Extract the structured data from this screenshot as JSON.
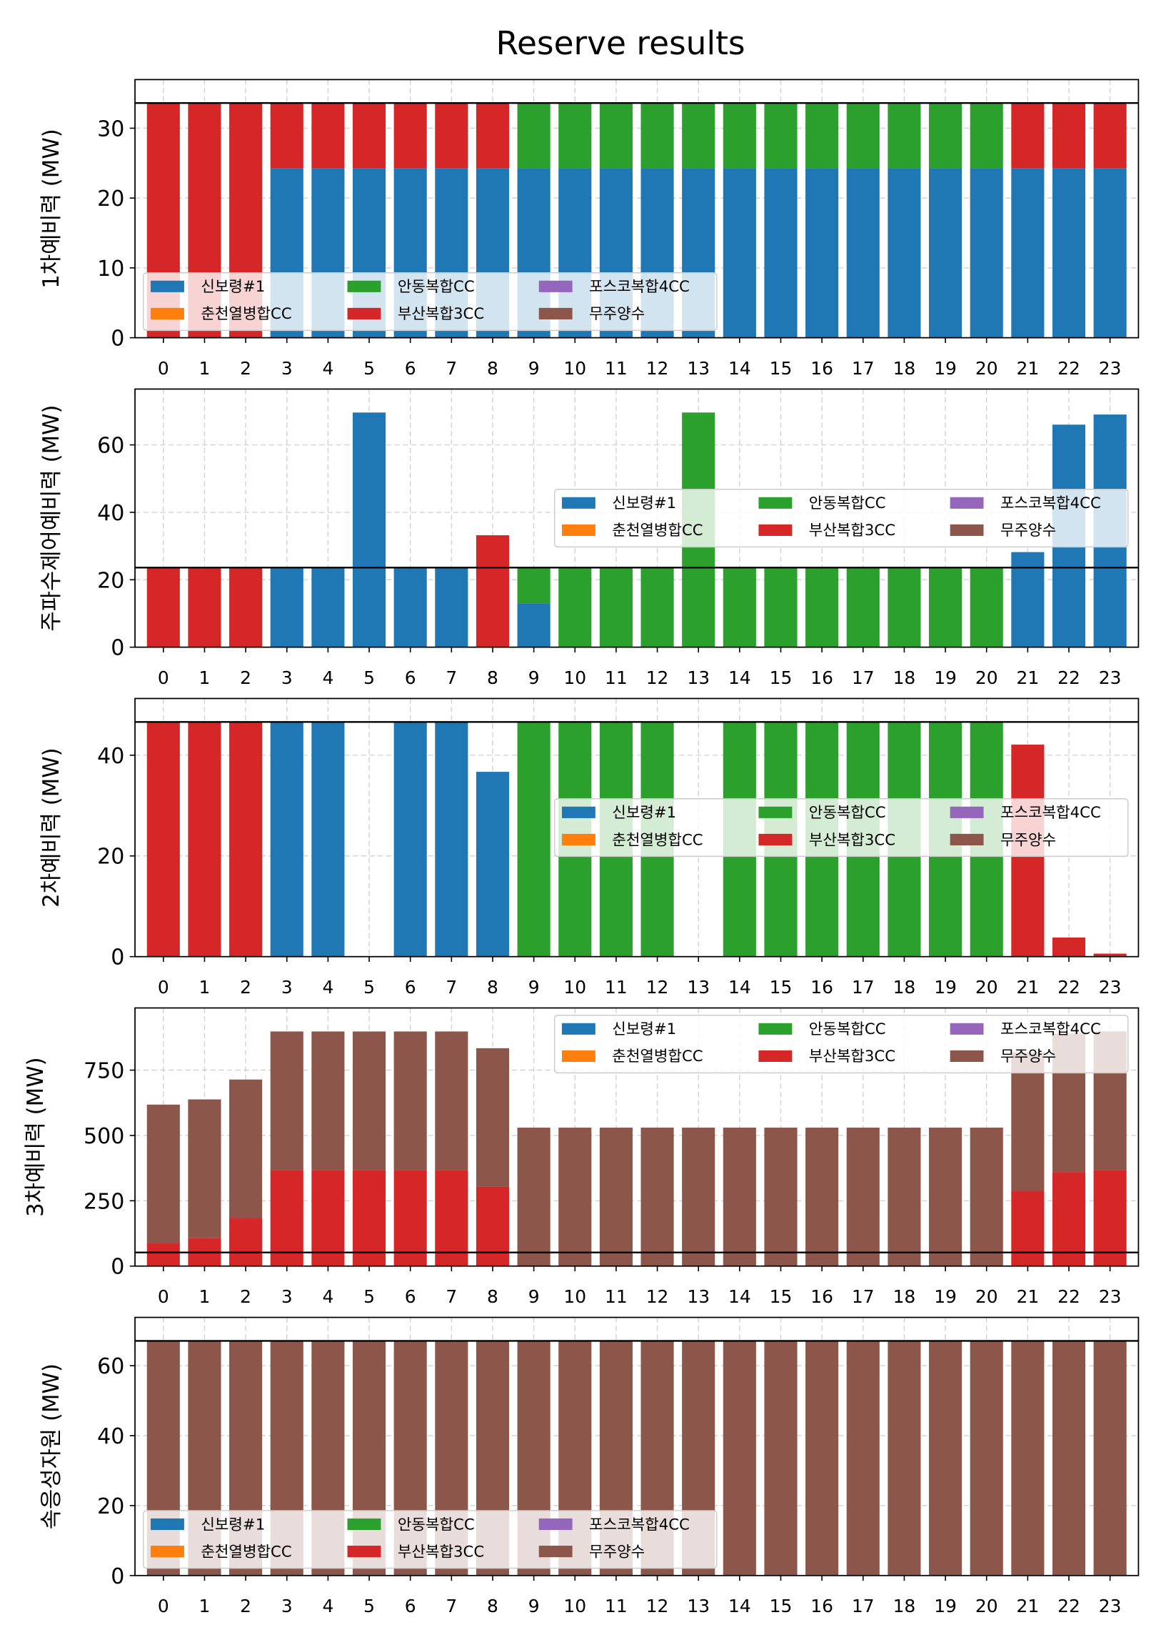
{
  "title": "Reserve results",
  "chart_data": [
    {
      "type": "bar",
      "stacked": true,
      "ylabel": "1차예비력 (MW)",
      "categories": [
        "0",
        "1",
        "2",
        "3",
        "4",
        "5",
        "6",
        "7",
        "8",
        "9",
        "10",
        "11",
        "12",
        "13",
        "14",
        "15",
        "16",
        "17",
        "18",
        "19",
        "20",
        "21",
        "22",
        "23"
      ],
      "ylim": [
        0,
        36.96
      ],
      "yticks": [
        0,
        10,
        20,
        30
      ],
      "reference_line": 33.6,
      "grid": true,
      "legend": "lower-left",
      "series": [
        {
          "name": "신보령#1",
          "color": "#1f77b4",
          "values": [
            0,
            0,
            0,
            24.3,
            24.3,
            24.3,
            24.3,
            24.3,
            24.3,
            24.3,
            24.3,
            24.3,
            24.3,
            24.3,
            24.3,
            24.3,
            24.3,
            24.3,
            24.3,
            24.3,
            24.3,
            24.3,
            24.3,
            24.3
          ]
        },
        {
          "name": "춘천열병합CC",
          "color": "#ff7f0e",
          "values": [
            0,
            0,
            0,
            0,
            0,
            0,
            0,
            0,
            0,
            0,
            0,
            0,
            0,
            0,
            0,
            0,
            0,
            0,
            0,
            0,
            0,
            0,
            0,
            0
          ]
        },
        {
          "name": "안동복합CC",
          "color": "#2ca02c",
          "values": [
            0,
            0,
            0,
            0,
            0,
            0,
            0,
            0,
            0,
            9.3,
            9.3,
            9.3,
            9.3,
            9.3,
            9.3,
            9.3,
            9.3,
            9.3,
            9.3,
            9.3,
            9.3,
            0,
            0,
            0
          ]
        },
        {
          "name": "부산복합3CC",
          "color": "#d62728",
          "values": [
            33.6,
            33.6,
            33.6,
            9.3,
            9.3,
            9.3,
            9.3,
            9.3,
            9.3,
            0,
            0,
            0,
            0,
            0,
            0,
            0,
            0,
            0,
            0,
            0,
            0,
            9.3,
            9.3,
            9.3
          ]
        },
        {
          "name": "포스코복합4CC",
          "color": "#9467bd",
          "values": [
            0,
            0,
            0,
            0,
            0,
            0,
            0,
            0,
            0,
            0,
            0,
            0,
            0,
            0,
            0,
            0,
            0,
            0,
            0,
            0,
            0,
            0,
            0,
            0
          ]
        },
        {
          "name": "무주양수",
          "color": "#8c564b",
          "values": [
            0,
            0,
            0,
            0,
            0,
            0,
            0,
            0,
            0,
            0,
            0,
            0,
            0,
            0,
            0,
            0,
            0,
            0,
            0,
            0,
            0,
            0,
            0,
            0
          ]
        }
      ]
    },
    {
      "type": "bar",
      "stacked": true,
      "ylabel": "주파수제어예비력 (MW)",
      "categories": [
        "0",
        "1",
        "2",
        "3",
        "4",
        "5",
        "6",
        "7",
        "8",
        "9",
        "10",
        "11",
        "12",
        "13",
        "14",
        "15",
        "16",
        "17",
        "18",
        "19",
        "20",
        "21",
        "22",
        "23"
      ],
      "ylim": [
        0,
        76.56
      ],
      "yticks": [
        0,
        20,
        40,
        60
      ],
      "reference_line": 23.6,
      "grid": true,
      "legend": "center-right",
      "series": [
        {
          "name": "신보령#1",
          "color": "#1f77b4",
          "values": [
            0,
            0,
            0,
            23.6,
            23.6,
            69.6,
            23.6,
            23.6,
            0,
            13.0,
            0,
            0,
            0,
            0,
            0,
            0,
            0,
            0,
            0,
            0,
            0,
            28.2,
            66.0,
            69.0
          ]
        },
        {
          "name": "춘천열병합CC",
          "color": "#ff7f0e",
          "values": [
            0,
            0,
            0,
            0,
            0,
            0,
            0,
            0,
            0,
            0,
            0,
            0,
            0,
            0,
            0,
            0,
            0,
            0,
            0,
            0,
            0,
            0,
            0,
            0
          ]
        },
        {
          "name": "안동복합CC",
          "color": "#2ca02c",
          "values": [
            0,
            0,
            0,
            0,
            0,
            0,
            0,
            0,
            0,
            10.6,
            23.6,
            23.6,
            23.6,
            69.6,
            23.6,
            23.6,
            23.6,
            23.6,
            23.6,
            23.6,
            23.6,
            0,
            0,
            0
          ]
        },
        {
          "name": "부산복합3CC",
          "color": "#d62728",
          "values": [
            23.6,
            23.6,
            23.6,
            0,
            0,
            0,
            0,
            0,
            33.2,
            0,
            0,
            0,
            0,
            0,
            0,
            0,
            0,
            0,
            0,
            0,
            0,
            0,
            0,
            0
          ]
        },
        {
          "name": "포스코복합4CC",
          "color": "#9467bd",
          "values": [
            0,
            0,
            0,
            0,
            0,
            0,
            0,
            0,
            0,
            0,
            0,
            0,
            0,
            0,
            0,
            0,
            0,
            0,
            0,
            0,
            0,
            0,
            0,
            0
          ]
        },
        {
          "name": "무주양수",
          "color": "#8c564b",
          "values": [
            0,
            0,
            0,
            0,
            0,
            0,
            0,
            0,
            0,
            0,
            0,
            0,
            0,
            0,
            0,
            0,
            0,
            0,
            0,
            0,
            0,
            0,
            0,
            0
          ]
        }
      ]
    },
    {
      "type": "bar",
      "stacked": true,
      "ylabel": "2차예비력 (MW)",
      "categories": [
        "0",
        "1",
        "2",
        "3",
        "4",
        "5",
        "6",
        "7",
        "8",
        "9",
        "10",
        "11",
        "12",
        "13",
        "14",
        "15",
        "16",
        "17",
        "18",
        "19",
        "20",
        "21",
        "22",
        "23"
      ],
      "ylim": [
        0,
        51.26
      ],
      "yticks": [
        0,
        20,
        40
      ],
      "reference_line": 46.6,
      "grid": true,
      "legend": "center-right",
      "series": [
        {
          "name": "신보령#1",
          "color": "#1f77b4",
          "values": [
            0,
            0,
            0,
            46.6,
            46.6,
            0,
            46.6,
            46.6,
            36.7,
            0,
            0,
            0,
            0,
            0,
            0,
            0,
            0,
            0,
            0,
            0,
            0,
            0,
            0,
            0
          ]
        },
        {
          "name": "춘천열병합CC",
          "color": "#ff7f0e",
          "values": [
            0,
            0,
            0,
            0,
            0,
            0,
            0,
            0,
            0,
            0,
            0,
            0,
            0,
            0,
            0,
            0,
            0,
            0,
            0,
            0,
            0,
            0,
            0,
            0
          ]
        },
        {
          "name": "안동복합CC",
          "color": "#2ca02c",
          "values": [
            0,
            0,
            0,
            0,
            0,
            0,
            0,
            0,
            0,
            46.6,
            46.6,
            46.6,
            46.6,
            0,
            46.6,
            46.6,
            46.6,
            46.6,
            46.6,
            46.6,
            46.6,
            0,
            0,
            0
          ]
        },
        {
          "name": "부산복합3CC",
          "color": "#d62728",
          "values": [
            46.6,
            46.6,
            46.6,
            0,
            0,
            0,
            0,
            0,
            0,
            0,
            0,
            0,
            0,
            0,
            0,
            0,
            0,
            0,
            0,
            0,
            0,
            42.1,
            3.8,
            0.6
          ]
        },
        {
          "name": "포스코복합4CC",
          "color": "#9467bd",
          "values": [
            0,
            0,
            0,
            0,
            0,
            0,
            0,
            0,
            0,
            0,
            0,
            0,
            0,
            0,
            0,
            0,
            0,
            0,
            0,
            0,
            0,
            0,
            0,
            0
          ]
        },
        {
          "name": "무주양수",
          "color": "#8c564b",
          "values": [
            0,
            0,
            0,
            0,
            0,
            0,
            0,
            0,
            0,
            0,
            0,
            0,
            0,
            0,
            0,
            0,
            0,
            0,
            0,
            0,
            0,
            0,
            0,
            0
          ]
        }
      ]
    },
    {
      "type": "bar",
      "stacked": true,
      "ylabel": "3차예비력 (MW)",
      "categories": [
        "0",
        "1",
        "2",
        "3",
        "4",
        "5",
        "6",
        "7",
        "8",
        "9",
        "10",
        "11",
        "12",
        "13",
        "14",
        "15",
        "16",
        "17",
        "18",
        "19",
        "20",
        "21",
        "22",
        "23"
      ],
      "ylim": [
        0,
        988
      ],
      "yticks": [
        0,
        250,
        500,
        750
      ],
      "reference_line": 52,
      "grid": true,
      "legend": "upper-right",
      "series": [
        {
          "name": "신보령#1",
          "color": "#1f77b4",
          "values": [
            0,
            0,
            0,
            0,
            0,
            0,
            0,
            0,
            0,
            0,
            0,
            0,
            0,
            0,
            0,
            0,
            0,
            0,
            0,
            0,
            0,
            0,
            0,
            0
          ]
        },
        {
          "name": "춘천열병합CC",
          "color": "#ff7f0e",
          "values": [
            0,
            0,
            0,
            0,
            0,
            0,
            0,
            0,
            0,
            0,
            0,
            0,
            0,
            0,
            0,
            0,
            0,
            0,
            0,
            0,
            0,
            0,
            0,
            0
          ]
        },
        {
          "name": "안동복합CC",
          "color": "#2ca02c",
          "values": [
            0,
            0,
            0,
            0,
            0,
            0,
            0,
            0,
            0,
            0,
            0,
            0,
            0,
            0,
            0,
            0,
            0,
            0,
            0,
            0,
            0,
            0,
            0,
            0
          ]
        },
        {
          "name": "부산복합3CC",
          "color": "#d62728",
          "values": [
            88,
            108,
            184,
            368,
            368,
            368,
            368,
            368,
            304,
            0,
            0,
            0,
            0,
            0,
            0,
            0,
            0,
            0,
            0,
            0,
            0,
            288,
            360,
            368
          ]
        },
        {
          "name": "포스코복합4CC",
          "color": "#9467bd",
          "values": [
            0,
            0,
            0,
            0,
            0,
            0,
            0,
            0,
            0,
            0,
            0,
            0,
            0,
            0,
            0,
            0,
            0,
            0,
            0,
            0,
            0,
            0,
            0,
            0
          ]
        },
        {
          "name": "무주양수",
          "color": "#8c564b",
          "values": [
            530,
            530,
            530,
            530,
            530,
            530,
            530,
            530,
            530,
            530,
            530,
            530,
            530,
            530,
            530,
            530,
            530,
            530,
            530,
            530,
            530,
            530,
            530,
            530
          ]
        }
      ]
    },
    {
      "type": "bar",
      "stacked": true,
      "ylabel": "속응성자원 (MW)",
      "categories": [
        "0",
        "1",
        "2",
        "3",
        "4",
        "5",
        "6",
        "7",
        "8",
        "9",
        "10",
        "11",
        "12",
        "13",
        "14",
        "15",
        "16",
        "17",
        "18",
        "19",
        "20",
        "21",
        "22",
        "23"
      ],
      "ylim": [
        0,
        73.81
      ],
      "yticks": [
        0,
        20,
        40,
        60
      ],
      "reference_line": 67.1,
      "grid": true,
      "legend": "lower-left",
      "series": [
        {
          "name": "신보령#1",
          "color": "#1f77b4",
          "values": [
            0,
            0,
            0,
            0,
            0,
            0,
            0,
            0,
            0,
            0,
            0,
            0,
            0,
            0,
            0,
            0,
            0,
            0,
            0,
            0,
            0,
            0,
            0,
            0
          ]
        },
        {
          "name": "춘천열병합CC",
          "color": "#ff7f0e",
          "values": [
            0,
            0,
            0,
            0,
            0,
            0,
            0,
            0,
            0,
            0,
            0,
            0,
            0,
            0,
            0,
            0,
            0,
            0,
            0,
            0,
            0,
            0,
            0,
            0
          ]
        },
        {
          "name": "안동복합CC",
          "color": "#2ca02c",
          "values": [
            0,
            0,
            0,
            0,
            0,
            0,
            0,
            0,
            0,
            0,
            0,
            0,
            0,
            0,
            0,
            0,
            0,
            0,
            0,
            0,
            0,
            0,
            0,
            0
          ]
        },
        {
          "name": "부산복합3CC",
          "color": "#d62728",
          "values": [
            0,
            0,
            0,
            0,
            0,
            0,
            0,
            0,
            0,
            0,
            0,
            0,
            0,
            0,
            0,
            0,
            0,
            0,
            0,
            0,
            0,
            0,
            0,
            0
          ]
        },
        {
          "name": "포스코복합4CC",
          "color": "#9467bd",
          "values": [
            0,
            0,
            0,
            0,
            0,
            0,
            0,
            0,
            0,
            0,
            0,
            0,
            0,
            0,
            0,
            0,
            0,
            0,
            0,
            0,
            0,
            0,
            0,
            0
          ]
        },
        {
          "name": "무주양수",
          "color": "#8c564b",
          "values": [
            67.1,
            67.1,
            67.1,
            67.1,
            67.1,
            67.1,
            67.1,
            67.1,
            67.1,
            67.1,
            67.1,
            67.1,
            67.1,
            67.1,
            67.1,
            67.1,
            67.1,
            67.1,
            67.1,
            67.1,
            67.1,
            67.1,
            67.1,
            67.1
          ]
        }
      ]
    }
  ]
}
